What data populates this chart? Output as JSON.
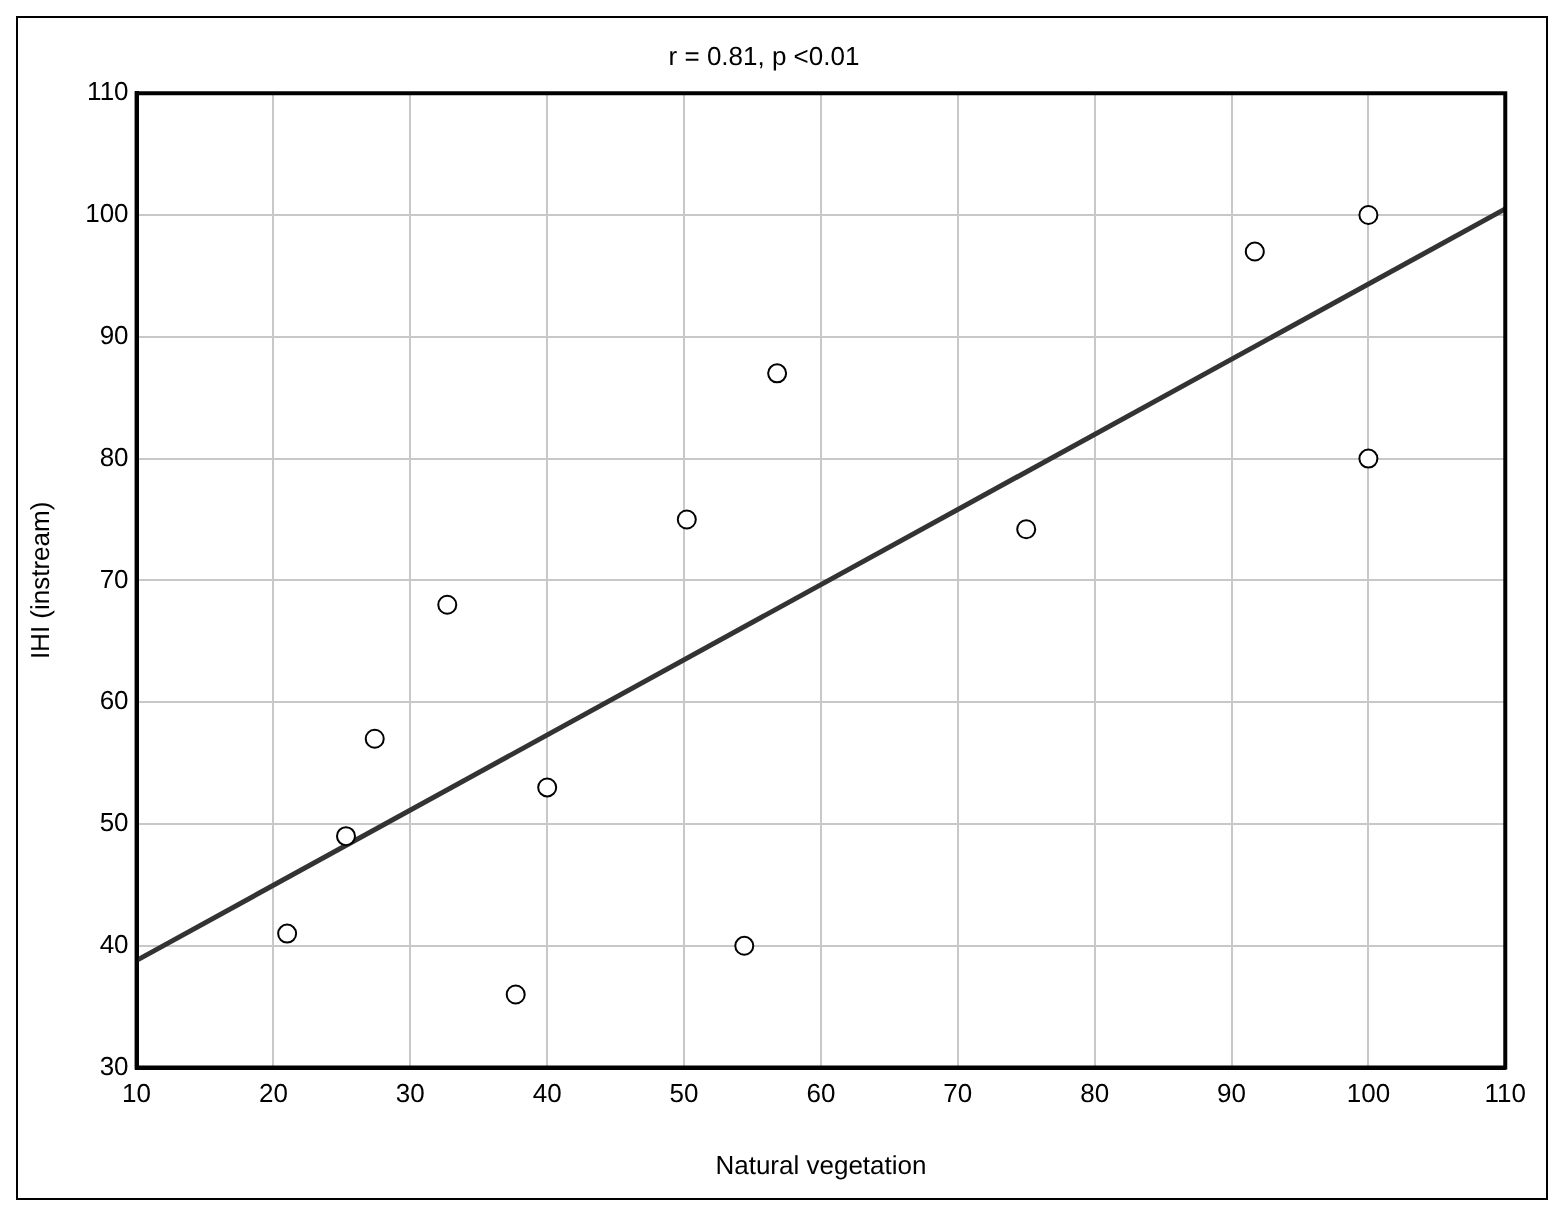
{
  "chart_data": {
    "type": "scatter",
    "title": "r = 0.81, p <0.01",
    "xlabel": "Natural vegetation",
    "ylabel": "IHI (instream)",
    "xlim": [
      10,
      110
    ],
    "xticks": [
      10,
      20,
      30,
      40,
      50,
      60,
      70,
      80,
      90,
      100,
      110
    ],
    "ylim": [
      30,
      110
    ],
    "yticks": [
      30,
      40,
      50,
      60,
      70,
      80,
      90,
      100,
      110
    ],
    "grid": true,
    "legend": false,
    "marker": "circle",
    "series": [
      {
        "type": "scatter",
        "color": "#000000",
        "x": [
          21,
          25.3,
          27.4,
          32.7,
          37.7,
          40,
          50.2,
          54.4,
          56.8,
          75,
          91.7,
          100,
          100
        ],
        "values": [
          41,
          49,
          57,
          68,
          36,
          53,
          75,
          40,
          87,
          74.2,
          97,
          100,
          80
        ]
      },
      {
        "type": "line",
        "color": "#333333",
        "x": [
          10,
          110
        ],
        "values": [
          38.8,
          100.5
        ],
        "marker": "none",
        "line_style": "solid"
      }
    ]
  }
}
